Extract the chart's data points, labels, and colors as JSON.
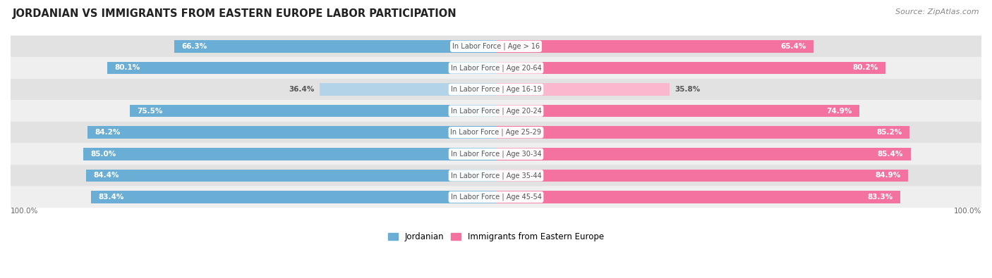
{
  "title": "JORDANIAN VS IMMIGRANTS FROM EASTERN EUROPE LABOR PARTICIPATION",
  "source": "Source: ZipAtlas.com",
  "categories": [
    "In Labor Force | Age > 16",
    "In Labor Force | Age 20-64",
    "In Labor Force | Age 16-19",
    "In Labor Force | Age 20-24",
    "In Labor Force | Age 25-29",
    "In Labor Force | Age 30-34",
    "In Labor Force | Age 35-44",
    "In Labor Force | Age 45-54"
  ],
  "jordanian_values": [
    66.3,
    80.1,
    36.4,
    75.5,
    84.2,
    85.0,
    84.4,
    83.4
  ],
  "immigrant_values": [
    65.4,
    80.2,
    35.8,
    74.9,
    85.2,
    85.4,
    84.9,
    83.3
  ],
  "jordanian_color": "#6aaed6",
  "jordanian_color_light": "#b3d4e8",
  "immigrant_color": "#f472a0",
  "immigrant_color_light": "#f9b8ce",
  "row_bg_color_dark": "#e2e2e2",
  "row_bg_color_light": "#efefef",
  "label_color_dark": "#555555",
  "legend_jordanian": "Jordanian",
  "legend_immigrant": "Immigrants from Eastern Europe",
  "max_value": 100.0,
  "bar_height": 0.58,
  "figsize": [
    14.06,
    3.95
  ],
  "dpi": 100
}
